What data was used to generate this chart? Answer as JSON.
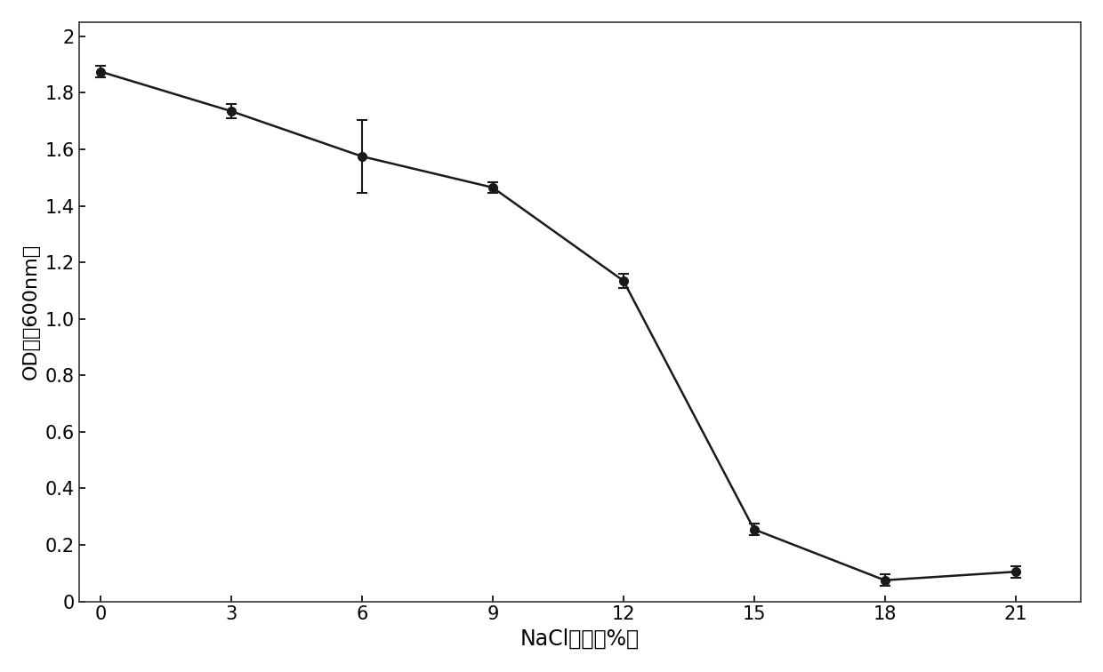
{
  "x": [
    0,
    3,
    6,
    9,
    12,
    15,
    18,
    21
  ],
  "y": [
    1.875,
    1.735,
    1.575,
    1.465,
    1.135,
    0.255,
    0.075,
    0.105
  ],
  "yerr": [
    0.02,
    0.025,
    0.13,
    0.02,
    0.025,
    0.02,
    0.02,
    0.02
  ],
  "xlabel": "NaCl浓度（%）",
  "ylabel": "OD値（600nm）",
  "xlim": [
    -0.5,
    22.5
  ],
  "ylim": [
    0,
    2.05
  ],
  "yticks": [
    0,
    0.2,
    0.4,
    0.6,
    0.8,
    1.0,
    1.2,
    1.4,
    1.6,
    1.8,
    2.0
  ],
  "ytick_labels": [
    "0",
    "0.2",
    "0.4",
    "0.6",
    "0.8",
    "1.0",
    "1.2",
    "1.4",
    "1.6",
    "1.8",
    "2"
  ],
  "xticks": [
    0,
    3,
    6,
    9,
    12,
    15,
    18,
    21
  ],
  "xtick_labels": [
    "0",
    "3",
    "6",
    "9",
    "12",
    "15",
    "18",
    "21"
  ],
  "line_color": "#1a1a1a",
  "marker": "o",
  "markersize": 7,
  "linewidth": 1.8,
  "background_color": "#ffffff",
  "axes_background": "#ffffff",
  "xlabel_fontsize": 17,
  "ylabel_fontsize": 16,
  "tick_fontsize": 15
}
